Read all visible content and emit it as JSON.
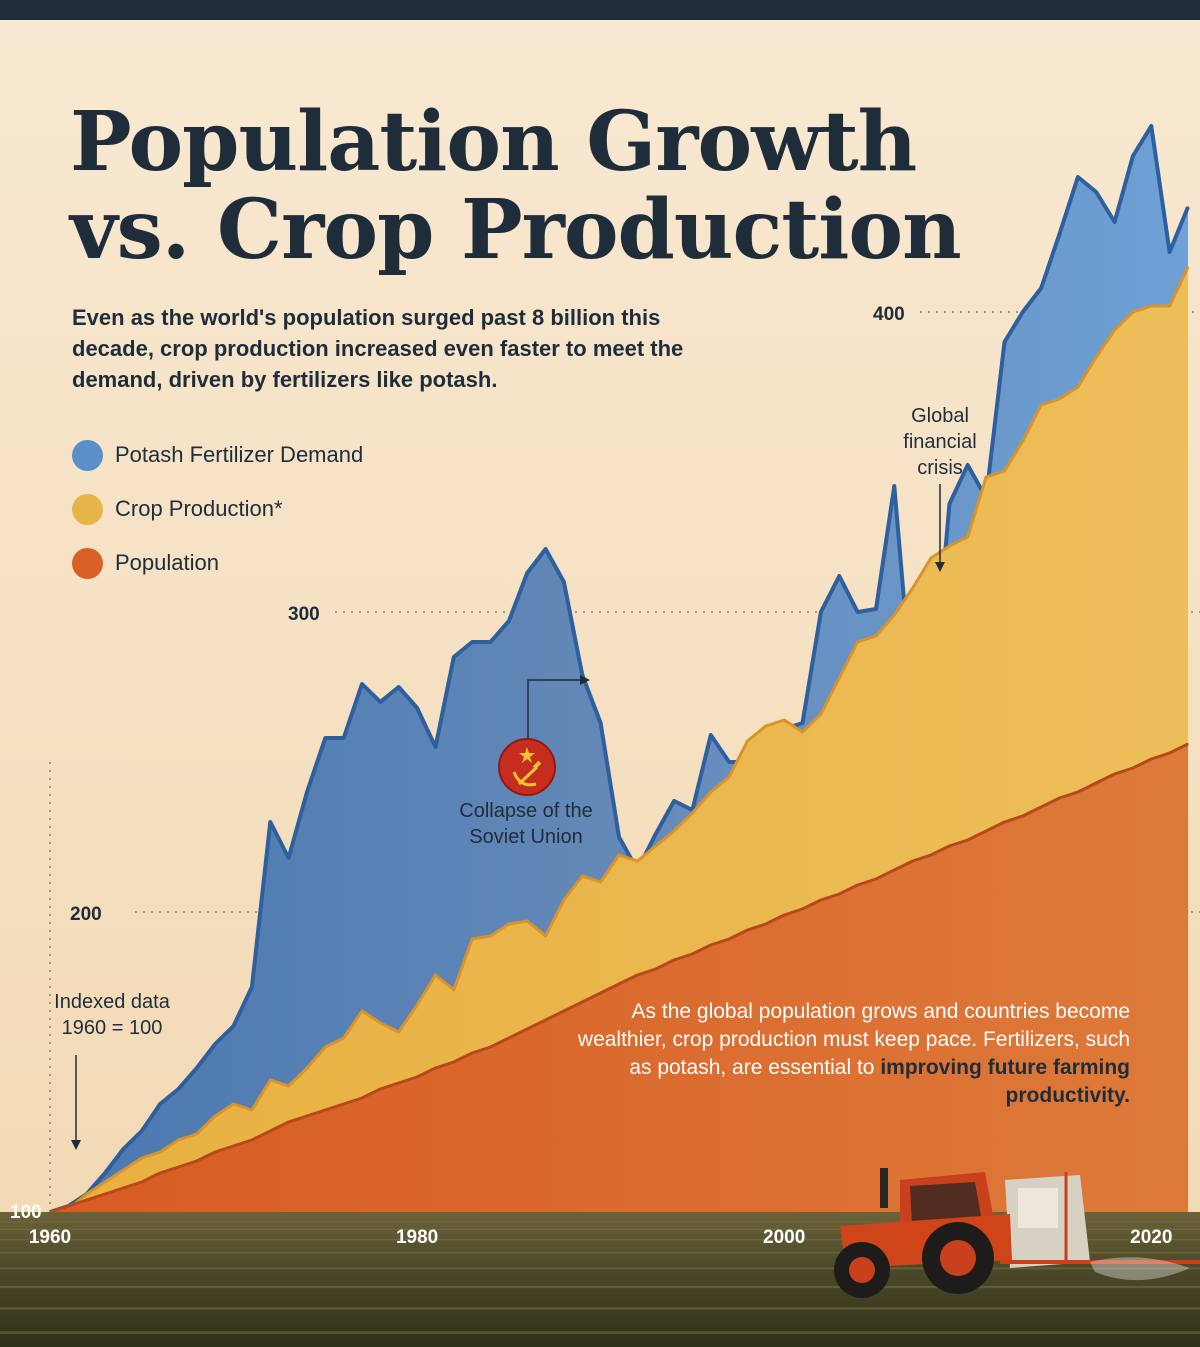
{
  "title_line1": "Population Growth",
  "title_line2": "vs. Crop Production",
  "subtitle": "Even as the world's population surged past 8 billion this decade, crop production increased even faster to meet the demand, driven by fertilizers like potash.",
  "legend": [
    {
      "label": "Potash Fertilizer Demand",
      "color": "#5b8fc9"
    },
    {
      "label": "Crop Production*",
      "color": "#e7b547"
    },
    {
      "label": "Population",
      "color": "#d95f25"
    }
  ],
  "annotations": {
    "indexed": "Indexed data 1960 = 100",
    "soviet": "Collapse of the Soviet Union",
    "gfc": "Global financial crisis"
  },
  "bottom_note_prefix": "As the global population grows and countries become wealthier, crop production must keep pace. Fertilizers, such as potash, are essential to",
  "bottom_note_bold": "improving future farming productivity.",
  "colors": {
    "background_top": "#f7e6cc",
    "background_bottom": "#f4ddbb",
    "top_bar": "#1f2d3a",
    "text_dark": "#1f2d3a",
    "potash": "#5b8fc9",
    "potash_line": "#2e5f9e",
    "crop": "#e7b547",
    "crop_line": "#d9932a",
    "population": "#d95f25",
    "population_line": "#b8471a",
    "field": "#4a4a2a",
    "soviet_badge": "#c62d1f"
  },
  "chart_data": {
    "type": "area",
    "x_label": "",
    "y_label": "",
    "x_range": [
      1960,
      2022
    ],
    "y_range": [
      100,
      450
    ],
    "x_ticks": [
      1960,
      1980,
      2000,
      2020
    ],
    "y_ticks": [
      100,
      200,
      300,
      400
    ],
    "legend_position": "top-left",
    "grid": "dotted lines at labeled ticks",
    "x": [
      1960,
      1961,
      1962,
      1963,
      1964,
      1965,
      1966,
      1967,
      1968,
      1969,
      1970,
      1971,
      1972,
      1973,
      1974,
      1975,
      1976,
      1977,
      1978,
      1979,
      1980,
      1981,
      1982,
      1983,
      1984,
      1985,
      1986,
      1987,
      1988,
      1989,
      1990,
      1991,
      1992,
      1993,
      1994,
      1995,
      1996,
      1997,
      1998,
      1999,
      2000,
      2001,
      2002,
      2003,
      2004,
      2005,
      2006,
      2007,
      2008,
      2009,
      2010,
      2011,
      2012,
      2013,
      2014,
      2015,
      2016,
      2017,
      2018,
      2019,
      2020,
      2021,
      2022
    ],
    "series": [
      {
        "name": "Potash Fertilizer Demand",
        "values": [
          100,
          102,
          106,
          113,
          121,
          127,
          136,
          141,
          148,
          156,
          162,
          175,
          230,
          218,
          240,
          258,
          258,
          276,
          270,
          275,
          268,
          255,
          285,
          290,
          290,
          297,
          313,
          321,
          310,
          279,
          263,
          225,
          214,
          226,
          237,
          234,
          259,
          250,
          250,
          256,
          261,
          263,
          300,
          312,
          300,
          301,
          342,
          270,
          265,
          336,
          349,
          338,
          390,
          400,
          408,
          426,
          445,
          440,
          430,
          452,
          462,
          420,
          435
        ]
      },
      {
        "name": "Crop Production*",
        "values": [
          100,
          101,
          106,
          110,
          114,
          118,
          120,
          124,
          126,
          132,
          136,
          134,
          144,
          142,
          148,
          155,
          158,
          167,
          163,
          160,
          169,
          179,
          174,
          191,
          192,
          196,
          197,
          192,
          204,
          212,
          210,
          219,
          217,
          222,
          227,
          233,
          240,
          245,
          257,
          262,
          264,
          260,
          266,
          278,
          290,
          292,
          299,
          308,
          318,
          322,
          325,
          345,
          347,
          357,
          369,
          371,
          375,
          385,
          394,
          400,
          402,
          402,
          415
        ]
      },
      {
        "name": "Population",
        "values": [
          100,
          102,
          104,
          106,
          108,
          110,
          113,
          115,
          117,
          120,
          122,
          124,
          127,
          130,
          132,
          134,
          136,
          138,
          141,
          143,
          145,
          148,
          150,
          153,
          155,
          158,
          161,
          164,
          167,
          170,
          173,
          176,
          179,
          181,
          184,
          186,
          189,
          191,
          194,
          196,
          199,
          201,
          204,
          206,
          209,
          211,
          214,
          217,
          219,
          222,
          224,
          227,
          230,
          232,
          235,
          238,
          240,
          243,
          246,
          248,
          251,
          253,
          256
        ]
      }
    ]
  }
}
